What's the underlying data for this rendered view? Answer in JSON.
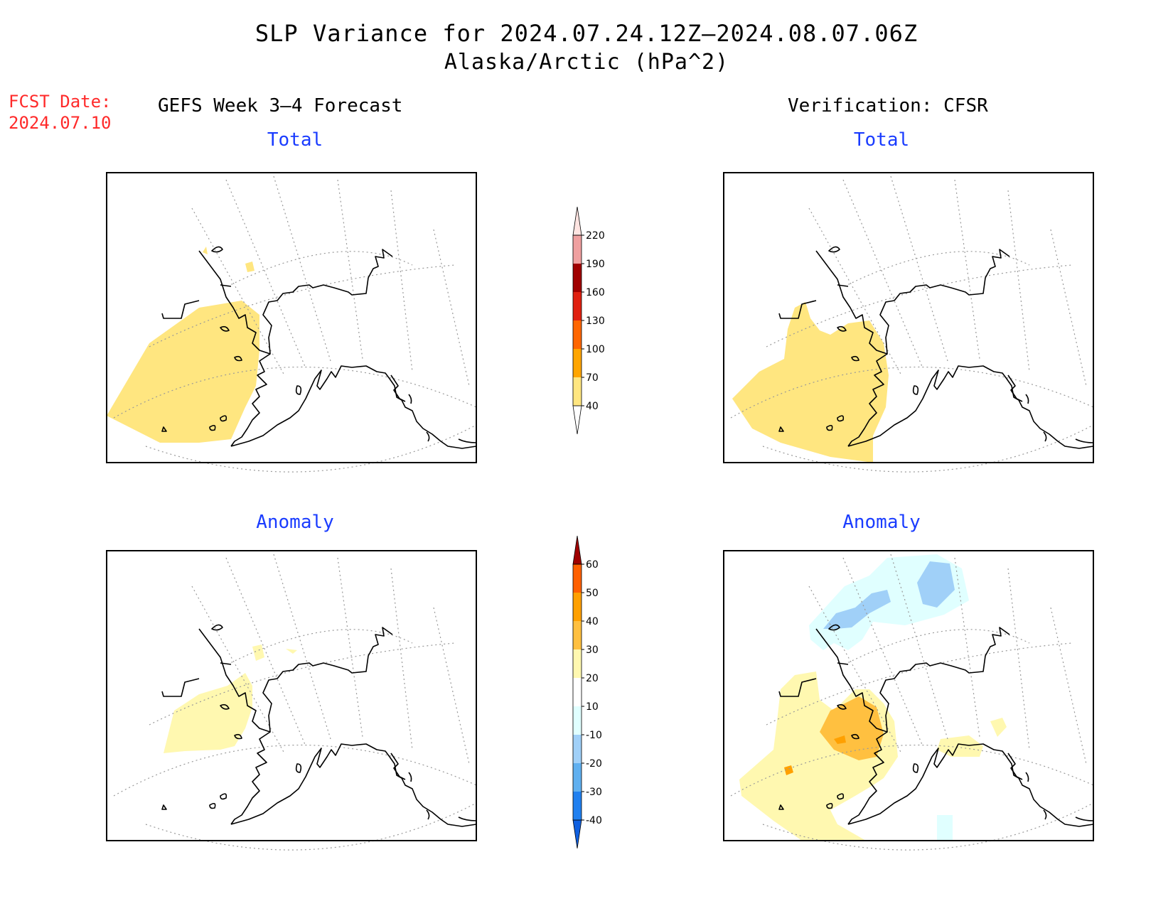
{
  "title": {
    "line1": "SLP Variance for 2024.07.24.12Z–2024.08.07.06Z",
    "line2": "Alaska/Arctic (hPa^2)"
  },
  "fcst_date": {
    "label": "FCST Date:",
    "value": "2024.07.10"
  },
  "columns": {
    "left": "GEFS Week 3–4 Forecast",
    "right": "Verification: CFSR"
  },
  "panels": {
    "forecast_total": "Total",
    "verification_total": "Total",
    "forecast_anomaly": "Anomaly",
    "verification_anomaly": "Anomaly"
  },
  "colorbars": {
    "total": {
      "labels": [
        "40",
        "70",
        "100",
        "130",
        "160",
        "190",
        "220"
      ],
      "colors": [
        "#ffe680",
        "#ffa500",
        "#ff6600",
        "#e02010",
        "#a00000",
        "#f0a0a0",
        "#ffe4e1"
      ]
    },
    "anomaly": {
      "labels": [
        "-40",
        "-30",
        "-20",
        "-10",
        "10",
        "20",
        "30",
        "40",
        "50",
        "60"
      ],
      "colors": [
        "#1060e0",
        "#2080f0",
        "#60b0f0",
        "#a0d0f8",
        "#e0ffff",
        "#ffffff",
        "#fff8b0",
        "#ffc040",
        "#ffa000",
        "#ff6000",
        "#e01000",
        "#a00000"
      ]
    }
  }
}
